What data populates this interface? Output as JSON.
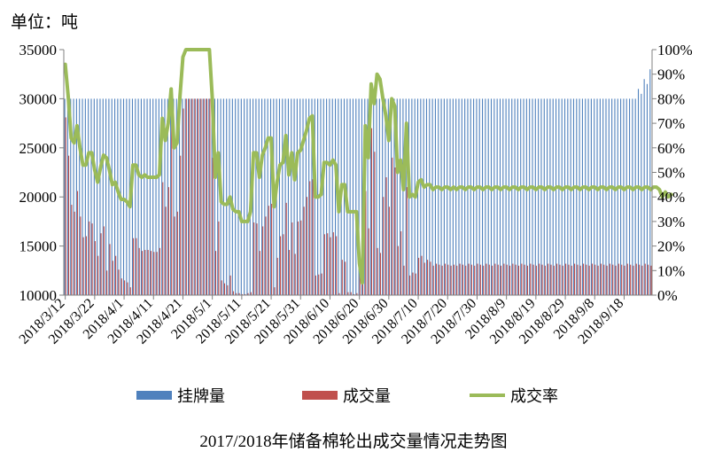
{
  "page": {
    "unit_label": "单位：吨",
    "caption": "2017/2018年储备棉轮出成交量情况走势图"
  },
  "chart_data": {
    "type": "bar",
    "title": "2017/2018年储备棉轮出成交量情况走势图",
    "unit": "单位：吨",
    "grid": false,
    "legend_position": "bottom",
    "x_tick_labels": [
      "2018/3/12",
      "2018/3/22",
      "2018/4/1",
      "2018/4/11",
      "2018/4/21",
      "2018/5/1",
      "2018/5/11",
      "2018/5/21",
      "2018/5/31",
      "2018/6/10",
      "2018/6/20",
      "2018/6/30",
      "2018/7/10",
      "2018/7/20",
      "2018/7/30",
      "2018/8/9",
      "2018/8/19",
      "2018/8/29",
      "2018/9/8",
      "2018/9/18"
    ],
    "y_left": {
      "min": 10000,
      "max": 35000,
      "step": 5000,
      "ticks": [
        "10000",
        "15000",
        "20000",
        "25000",
        "30000",
        "35000"
      ]
    },
    "y_right": {
      "min": 0,
      "max": 1,
      "step": 0.1,
      "ticks": [
        "0%",
        "10%",
        "20%",
        "30%",
        "40%",
        "50%",
        "60%",
        "70%",
        "80%",
        "90%",
        "100%"
      ]
    },
    "series": [
      {
        "name": "挂牌量",
        "type": "bar",
        "axis": "left",
        "color": "#4F81BD",
        "values": [
          30000,
          30000,
          30000,
          30000,
          30000,
          30000,
          30000,
          30000,
          30000,
          30000,
          30000,
          30000,
          30000,
          30000,
          30000,
          30000,
          30000,
          30000,
          30000,
          30000,
          30000,
          30000,
          30000,
          30000,
          30000,
          30000,
          30000,
          30000,
          30000,
          30000,
          30000,
          30000,
          30000,
          30000,
          30000,
          30000,
          30000,
          30000,
          30000,
          30000,
          30000,
          30000,
          30000,
          30000,
          30000,
          30000,
          30000,
          30000,
          30000,
          30000,
          30000,
          30000,
          30000,
          30000,
          30000,
          30000,
          30000,
          30000,
          30000,
          30000,
          30000,
          30000,
          30000,
          30000,
          30000,
          30000,
          30000,
          30000,
          30000,
          30000,
          30000,
          30000,
          30000,
          30000,
          30000,
          30000,
          30000,
          30000,
          30000,
          30000,
          30000,
          30000,
          30000,
          30000,
          30000,
          30000,
          30000,
          30000,
          30000,
          30000,
          30000,
          30000,
          30000,
          30000,
          30000,
          30000,
          30000,
          30000,
          30000,
          30000,
          30000,
          30000,
          30000,
          30000,
          30000,
          30000,
          30000,
          30000,
          30000,
          30000,
          30000,
          30000,
          30000,
          30000,
          30000,
          30000,
          30000,
          30000,
          30000,
          30000,
          30000,
          30000,
          30000,
          30000,
          30000,
          30000,
          30000,
          30000,
          30000,
          30000,
          30000,
          30000,
          30000,
          30000,
          30000,
          30000,
          30000,
          30000,
          30000,
          30000,
          30000,
          30000,
          30000,
          30000,
          30000,
          30000,
          30000,
          30000,
          30000,
          30000,
          30000,
          30000,
          30000,
          30000,
          30000,
          30000,
          30000,
          30000,
          30000,
          30000,
          30000,
          30000,
          30000,
          30000,
          30000,
          30000,
          30000,
          30000,
          30000,
          30000,
          30000,
          30000,
          30000,
          30000,
          30000,
          30000,
          30000,
          30000,
          30000,
          30000,
          30000,
          30000,
          30000,
          30000,
          30000,
          30000,
          30000,
          30000,
          30000,
          30000,
          30000,
          30000,
          30000,
          30000,
          30000,
          31000,
          30500,
          32000,
          31500,
          33000
        ]
      },
      {
        "name": "成交量",
        "type": "bar",
        "axis": "left",
        "color": "#C0504D",
        "values": [
          28100,
          24200,
          19200,
          18500,
          20600,
          18000,
          15900,
          16000,
          17500,
          17300,
          15500,
          14000,
          16300,
          17000,
          12500,
          15200,
          13500,
          14000,
          12600,
          11700,
          11500,
          11300,
          10800,
          15800,
          15800,
          14800,
          14500,
          14600,
          14600,
          14500,
          14400,
          14400,
          14800,
          21500,
          19000,
          21000,
          28500,
          18000,
          18500,
          24200,
          29000,
          30000,
          30000,
          30000,
          30000,
          30000,
          30000,
          30000,
          30000,
          30000,
          24000,
          14500,
          17500,
          11500,
          11200,
          11000,
          12000,
          10400,
          10200,
          10200,
          10100,
          10100,
          10200,
          10300,
          17400,
          17300,
          14500,
          17000,
          18000,
          19100,
          19300,
          10800,
          13800,
          16000,
          16200,
          19400,
          14600,
          17400,
          14200,
          17500,
          17600,
          19000,
          20000,
          21600,
          21800,
          12000,
          12100,
          12200,
          16200,
          16300,
          15900,
          16400,
          16000,
          10200,
          13600,
          13400,
          10300,
          10300,
          10100,
          10200,
          13400,
          14400,
          20600,
          16800,
          27000,
          24600,
          14800,
          14300,
          20000,
          22000,
          19000,
          24000,
          23000,
          15000,
          16500,
          13000,
          21000,
          12000,
          12300,
          12200,
          13800,
          14000,
          13300,
          13600,
          13400,
          13000,
          13200,
          13100,
          13000,
          13200,
          13100,
          13000,
          13100,
          13000,
          13200,
          13100,
          13000,
          13200,
          13100,
          13000,
          13200,
          13100,
          13000,
          13200,
          13100,
          13000,
          13200,
          13100,
          13000,
          13200,
          13100,
          13000,
          13200,
          13100,
          13000,
          13200,
          13100,
          13000,
          13200,
          13100,
          13000,
          13200,
          13100,
          13000,
          13200,
          13100,
          13000,
          13200,
          13100,
          13000,
          13200,
          13100,
          13000,
          13200,
          13100,
          13000,
          13200,
          13100,
          13000,
          13200,
          13100,
          13000,
          13200,
          13100,
          13000,
          13200,
          13100,
          13000,
          13200,
          13100,
          13000,
          13200,
          13100,
          13000,
          13200,
          13100,
          13000,
          13200,
          13100,
          13000,
          12500,
          13000,
          12800,
          13500
        ]
      },
      {
        "name": "成交率",
        "type": "line",
        "axis": "right",
        "color": "#9BBB59",
        "values": [
          0.94,
          0.81,
          0.64,
          0.62,
          0.69,
          0.6,
          0.53,
          0.53,
          0.58,
          0.58,
          0.51,
          0.46,
          0.52,
          0.57,
          0.56,
          0.51,
          0.45,
          0.46,
          0.42,
          0.39,
          0.39,
          0.38,
          0.36,
          0.53,
          0.53,
          0.49,
          0.48,
          0.49,
          0.48,
          0.48,
          0.48,
          0.48,
          0.49,
          0.72,
          0.63,
          0.7,
          0.84,
          0.6,
          0.62,
          0.81,
          0.97,
          1.0,
          1.0,
          1.0,
          1.0,
          1.0,
          1.0,
          1.0,
          1.0,
          1.0,
          0.8,
          0.48,
          0.58,
          0.38,
          0.37,
          0.37,
          0.4,
          0.35,
          0.34,
          0.34,
          0.3,
          0.3,
          0.3,
          0.34,
          0.58,
          0.58,
          0.48,
          0.57,
          0.6,
          0.64,
          0.64,
          0.36,
          0.46,
          0.53,
          0.54,
          0.65,
          0.49,
          0.58,
          0.47,
          0.58,
          0.59,
          0.63,
          0.67,
          0.72,
          0.73,
          0.4,
          0.4,
          0.41,
          0.54,
          0.54,
          0.53,
          0.55,
          0.53,
          0.34,
          0.45,
          0.45,
          0.34,
          0.34,
          0.34,
          0.34,
          0.13,
          0.05,
          0.69,
          0.56,
          0.86,
          0.78,
          0.9,
          0.88,
          0.8,
          0.73,
          0.63,
          0.8,
          0.77,
          0.5,
          0.55,
          0.43,
          0.7,
          0.4,
          0.41,
          0.4,
          0.46,
          0.47,
          0.44,
          0.45,
          0.45,
          0.43,
          0.44,
          0.44,
          0.43,
          0.44,
          0.44,
          0.43,
          0.44,
          0.43,
          0.44,
          0.44,
          0.43,
          0.44,
          0.44,
          0.43,
          0.44,
          0.44,
          0.43,
          0.44,
          0.44,
          0.43,
          0.44,
          0.44,
          0.43,
          0.44,
          0.44,
          0.43,
          0.44,
          0.44,
          0.43,
          0.44,
          0.44,
          0.43,
          0.44,
          0.44,
          0.43,
          0.44,
          0.44,
          0.43,
          0.44,
          0.44,
          0.43,
          0.44,
          0.44,
          0.43,
          0.44,
          0.44,
          0.43,
          0.44,
          0.44,
          0.43,
          0.44,
          0.44,
          0.43,
          0.44,
          0.44,
          0.43,
          0.44,
          0.44,
          0.43,
          0.44,
          0.44,
          0.43,
          0.44,
          0.44,
          0.43,
          0.44,
          0.44,
          0.43,
          0.44,
          0.44,
          0.43,
          0.44,
          0.44,
          0.43,
          0.44,
          0.44,
          0.43,
          0.4,
          0.42,
          0.4,
          0.41
        ]
      }
    ],
    "legend": [
      "挂牌量",
      "成交量",
      "成交率"
    ]
  }
}
